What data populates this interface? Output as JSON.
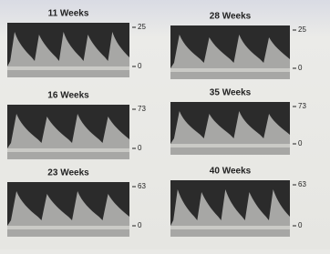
{
  "panels": [
    {
      "title": "11 Weeks",
      "scale_top": "25",
      "scale_bottom": "0"
    },
    {
      "title": "28 Weeks",
      "scale_top": "25",
      "scale_bottom": "0"
    },
    {
      "title": "16 Weeks",
      "scale_top": "73",
      "scale_bottom": "0"
    },
    {
      "title": "35 Weeks",
      "scale_top": "73",
      "scale_bottom": "0"
    },
    {
      "title": "23 Weeks",
      "scale_top": "63",
      "scale_bottom": "0"
    },
    {
      "title": "40 Weeks",
      "scale_top": "63",
      "scale_bottom": "0"
    }
  ]
}
